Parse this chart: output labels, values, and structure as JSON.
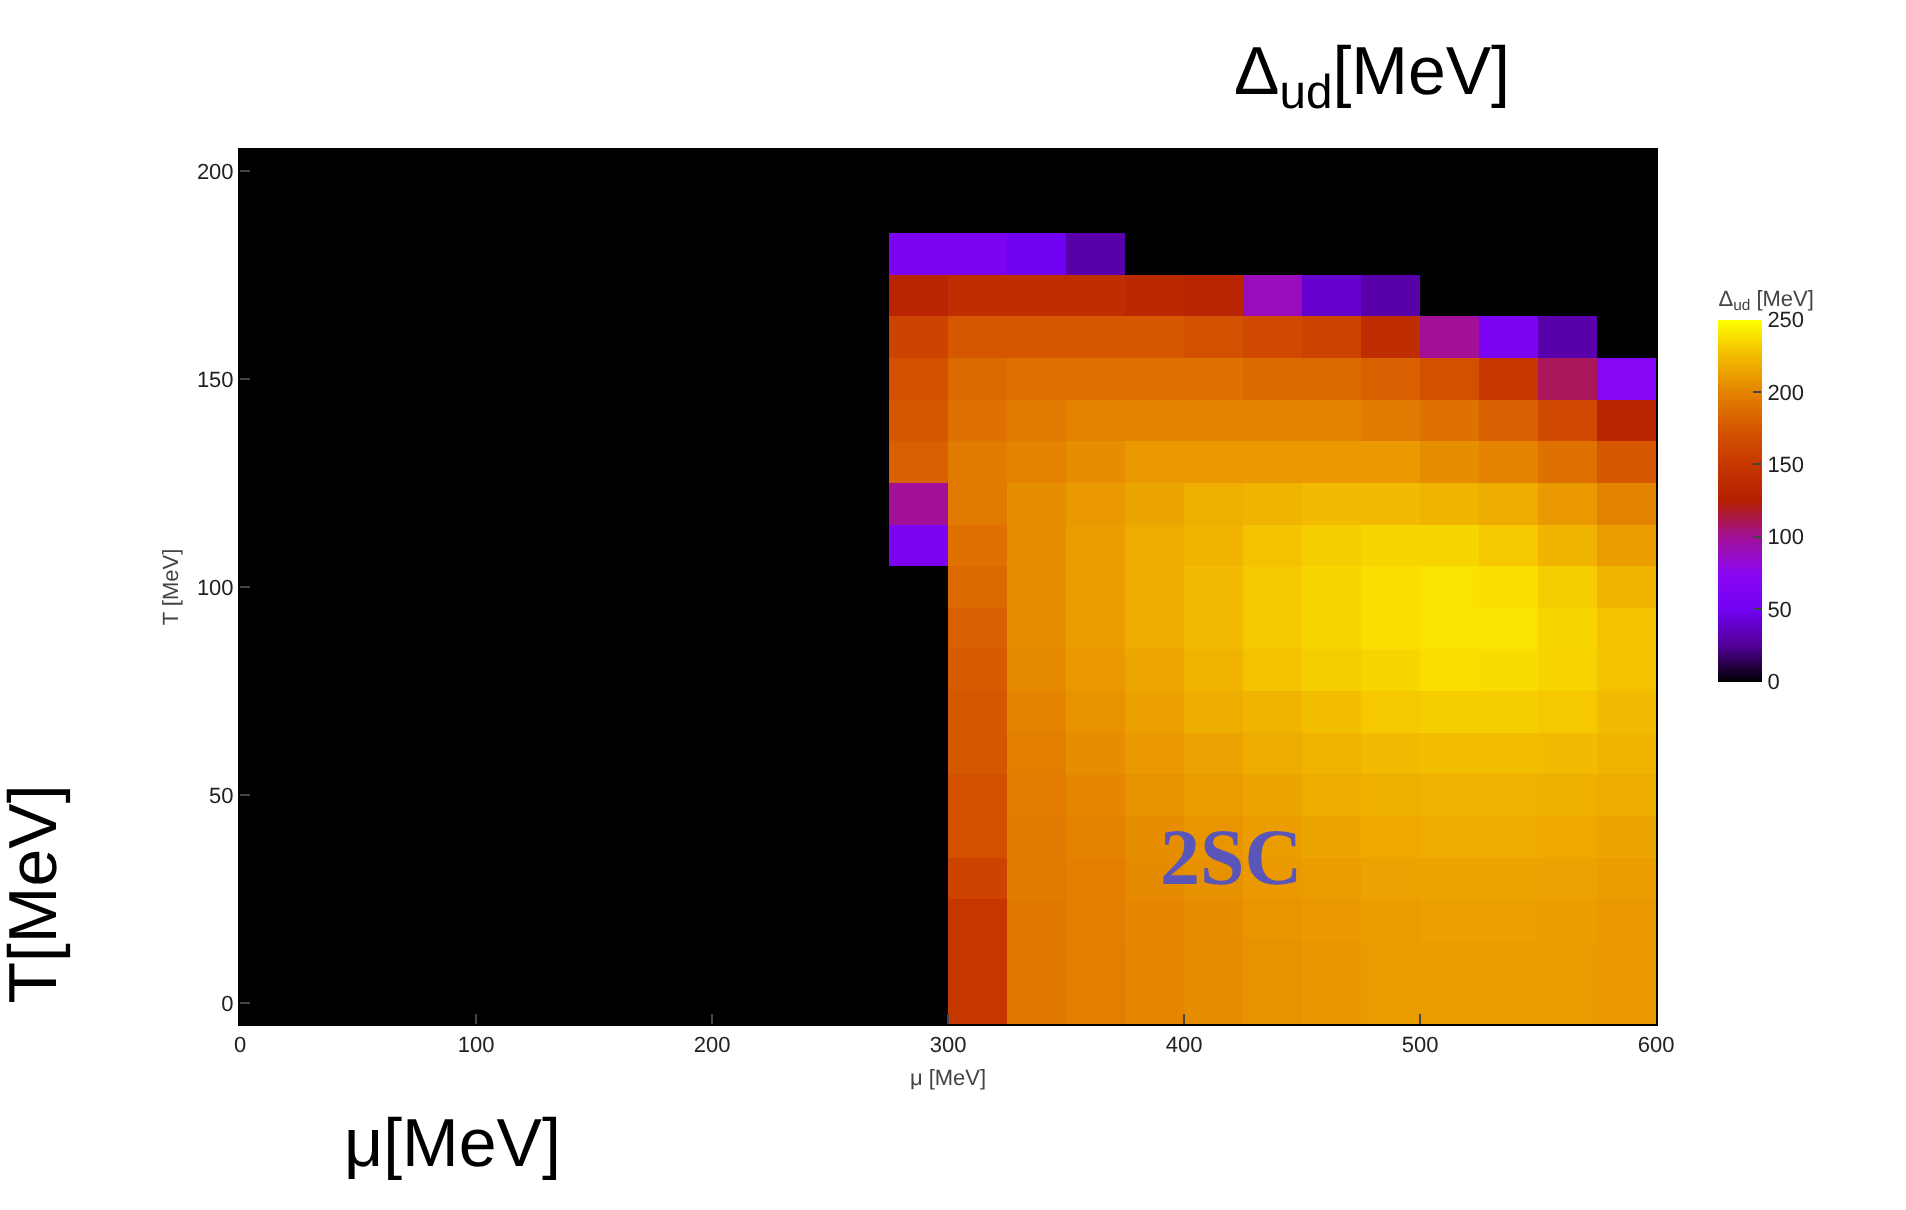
{
  "chart_data": {
    "type": "heatmap",
    "xlabel": "μ [MeV]",
    "ylabel": "T [MeV]",
    "clabel": "Δ$_{ud}$ [MeV]",
    "annotations": [
      "Δ$_{ud}$[MeV]",
      "T[MeV]",
      "μ[MeV]",
      "2SC"
    ],
    "x": [
      12.5,
      37.5,
      62.5,
      87.5,
      112.5,
      137.5,
      162.5,
      187.5,
      212.5,
      237.5,
      262.5,
      287.5,
      312.5,
      337.5,
      362.5,
      387.5,
      412.5,
      437.5,
      462.5,
      487.5,
      512.5,
      537.5,
      562.5,
      587.5
    ],
    "y_categories": [
      "200",
      null,
      null,
      null,
      null,
      "150",
      null,
      null,
      null,
      null,
      "100",
      null,
      null,
      null,
      null,
      "50",
      null,
      null,
      null,
      null,
      "0"
    ],
    "cells": [
      [
        0,
        0,
        0,
        0,
        0,
        0,
        0,
        0,
        0,
        0,
        0,
        0,
        0,
        0,
        0,
        0,
        0,
        0,
        0,
        0,
        0,
        0,
        0,
        0
      ],
      [
        0,
        0,
        0,
        0,
        0,
        0,
        0,
        0,
        0,
        0,
        0,
        0,
        0,
        0,
        0,
        0,
        0,
        0,
        0,
        0,
        0,
        0,
        0,
        0
      ],
      [
        0,
        0,
        0,
        0,
        0,
        0,
        0,
        0,
        0,
        0,
        0,
        60,
        60,
        50,
        30,
        0,
        0,
        0,
        0,
        0,
        0,
        0,
        0,
        0
      ],
      [
        0,
        0,
        0,
        0,
        0,
        0,
        0,
        0,
        0,
        0,
        0,
        130,
        140,
        140,
        140,
        135,
        130,
        90,
        40,
        30,
        0,
        0,
        0,
        0
      ],
      [
        0,
        0,
        0,
        0,
        0,
        0,
        0,
        0,
        0,
        0,
        0,
        160,
        175,
        175,
        175,
        175,
        170,
        165,
        160,
        140,
        100,
        60,
        30,
        0
      ],
      [
        0,
        0,
        0,
        0,
        0,
        0,
        0,
        0,
        0,
        0,
        0,
        170,
        185,
        190,
        190,
        190,
        190,
        185,
        185,
        180,
        170,
        150,
        110,
        70
      ],
      [
        0,
        0,
        0,
        0,
        0,
        0,
        0,
        0,
        0,
        0,
        0,
        175,
        190,
        195,
        200,
        200,
        200,
        200,
        200,
        195,
        190,
        180,
        165,
        130
      ],
      [
        0,
        0,
        0,
        0,
        0,
        0,
        0,
        0,
        0,
        0,
        0,
        180,
        195,
        200,
        205,
        210,
        210,
        210,
        210,
        210,
        205,
        200,
        190,
        175
      ],
      [
        0,
        0,
        0,
        0,
        0,
        0,
        0,
        0,
        0,
        0,
        0,
        100,
        195,
        205,
        210,
        215,
        220,
        222,
        225,
        225,
        222,
        218,
        210,
        200
      ],
      [
        0,
        0,
        0,
        0,
        0,
        0,
        0,
        0,
        0,
        0,
        0,
        60,
        190,
        205,
        212,
        218,
        222,
        228,
        232,
        235,
        235,
        230,
        222,
        212
      ],
      [
        0,
        0,
        0,
        0,
        0,
        0,
        0,
        0,
        0,
        0,
        0,
        0,
        185,
        205,
        212,
        218,
        225,
        230,
        235,
        238,
        240,
        238,
        232,
        222
      ],
      [
        0,
        0,
        0,
        0,
        0,
        0,
        0,
        0,
        0,
        0,
        0,
        0,
        180,
        205,
        212,
        218,
        225,
        230,
        235,
        238,
        240,
        240,
        235,
        228
      ],
      [
        0,
        0,
        0,
        0,
        0,
        0,
        0,
        0,
        0,
        0,
        0,
        0,
        178,
        203,
        210,
        216,
        222,
        228,
        232,
        235,
        238,
        237,
        234,
        228
      ],
      [
        0,
        0,
        0,
        0,
        0,
        0,
        0,
        0,
        0,
        0,
        0,
        0,
        175,
        200,
        207,
        213,
        218,
        222,
        226,
        230,
        232,
        232,
        230,
        225
      ],
      [
        0,
        0,
        0,
        0,
        0,
        0,
        0,
        0,
        0,
        0,
        0,
        0,
        175,
        198,
        205,
        210,
        214,
        218,
        222,
        225,
        226,
        226,
        225,
        222
      ],
      [
        0,
        0,
        0,
        0,
        0,
        0,
        0,
        0,
        0,
        0,
        0,
        0,
        170,
        196,
        202,
        207,
        211,
        215,
        218,
        220,
        221,
        221,
        220,
        218
      ],
      [
        0,
        0,
        0,
        0,
        0,
        0,
        0,
        0,
        0,
        0,
        0,
        0,
        170,
        195,
        200,
        205,
        208,
        212,
        215,
        217,
        218,
        218,
        217,
        215
      ],
      [
        0,
        0,
        0,
        0,
        0,
        0,
        0,
        0,
        0,
        0,
        0,
        0,
        160,
        195,
        198,
        203,
        206,
        210,
        212,
        214,
        215,
        215,
        214,
        212
      ],
      [
        0,
        0,
        0,
        0,
        0,
        0,
        0,
        0,
        0,
        0,
        0,
        0,
        150,
        194,
        197,
        202,
        205,
        208,
        210,
        212,
        213,
        213,
        212,
        210
      ],
      [
        0,
        0,
        0,
        0,
        0,
        0,
        0,
        0,
        0,
        0,
        0,
        0,
        150,
        194,
        197,
        201,
        204,
        207,
        209,
        211,
        212,
        212,
        211,
        210
      ],
      [
        0,
        0,
        0,
        0,
        0,
        0,
        0,
        0,
        0,
        0,
        0,
        0,
        150,
        194,
        197,
        201,
        204,
        207,
        209,
        211,
        212,
        212,
        211,
        210
      ]
    ],
    "xlim": [
      0,
      600
    ],
    "xticks": [
      0,
      100,
      200,
      300,
      400,
      500,
      600
    ],
    "clim": [
      0,
      250
    ],
    "cticks": [
      0,
      50,
      100,
      150,
      200,
      250
    ]
  }
}
